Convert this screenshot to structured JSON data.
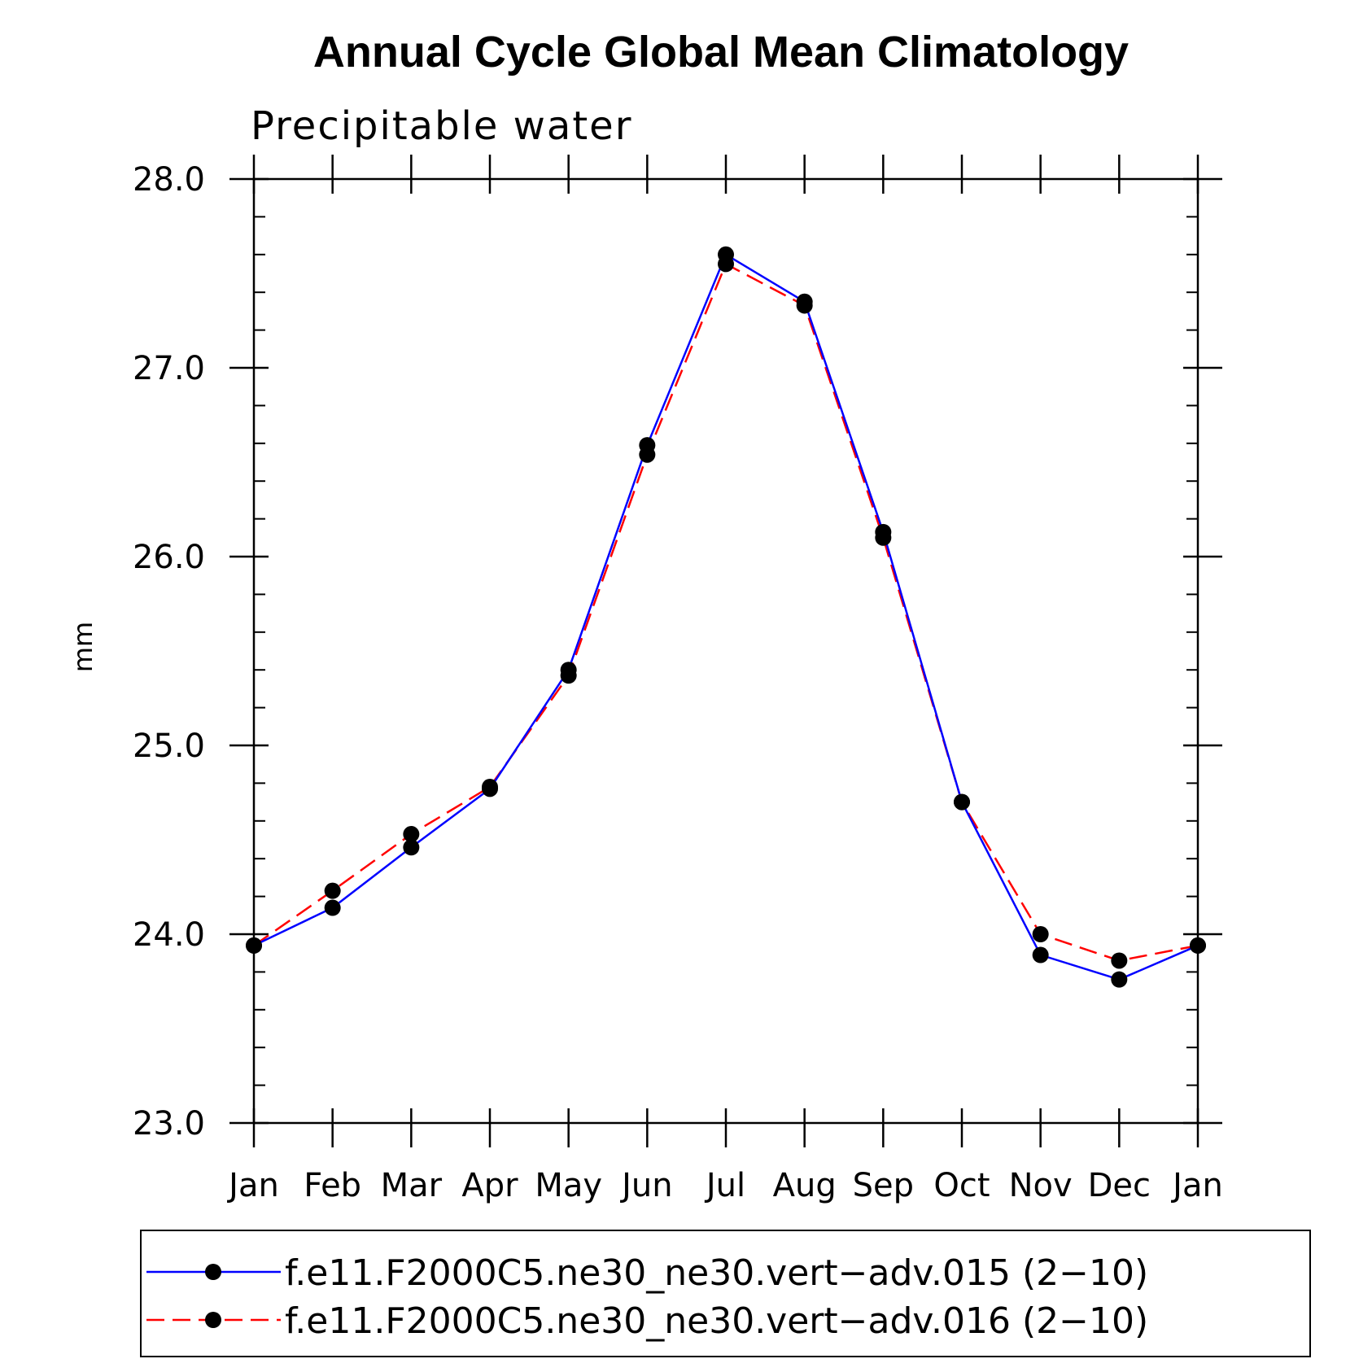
{
  "chart_data": {
    "type": "line",
    "title": "Annual Cycle Global Mean Climatology",
    "subtitle": "Precipitable water",
    "xlabel": "",
    "ylabel": "mm",
    "categories": [
      "Jan",
      "Feb",
      "Mar",
      "Apr",
      "May",
      "Jun",
      "Jul",
      "Aug",
      "Sep",
      "Oct",
      "Nov",
      "Dec",
      "Jan"
    ],
    "ylim": [
      23.0,
      28.0
    ],
    "yticks": [
      "23.0",
      "24.0",
      "25.0",
      "26.0",
      "27.0",
      "28.0"
    ],
    "grid": false,
    "legend_position": "bottom",
    "series": [
      {
        "name": "f.e11.F2000C5.ne30_ne30.vert−adv.015 (2−10)",
        "color": "#0000ff",
        "style": "solid",
        "marker": "filled-circle",
        "values": [
          23.94,
          24.14,
          24.46,
          24.77,
          25.4,
          26.59,
          27.6,
          27.35,
          26.13,
          24.7,
          23.89,
          23.76,
          23.94
        ]
      },
      {
        "name": "f.e11.F2000C5.ne30_ne30.vert−adv.016 (2−10)",
        "color": "#ff0000",
        "style": "dashed",
        "marker": "filled-circle",
        "values": [
          23.94,
          24.23,
          24.53,
          24.78,
          25.37,
          26.54,
          27.55,
          27.33,
          26.1,
          24.7,
          24.0,
          23.86,
          23.94
        ]
      }
    ]
  }
}
